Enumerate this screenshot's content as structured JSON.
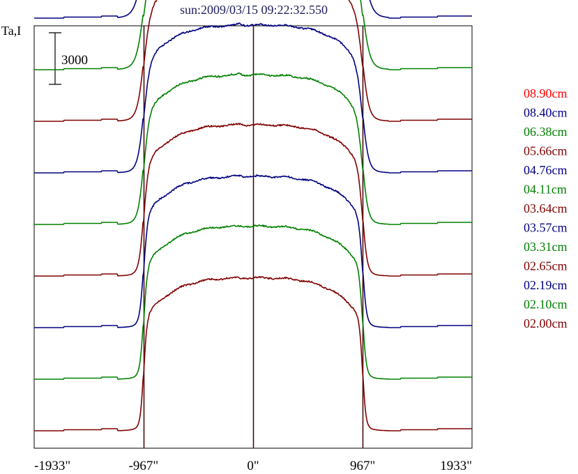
{
  "chart_data": {
    "type": "line",
    "title": "sun:2009/03/15 09:22:32.550",
    "ylabel": "Ta,I",
    "scale_bar_label": "3000",
    "scale_bar_value": 3000,
    "x_ticks": [
      {
        "value": -1933,
        "label": "-1933\""
      },
      {
        "value": -967,
        "label": "-967\""
      },
      {
        "value": 0,
        "label": "0\""
      },
      {
        "value": 967,
        "label": "967\""
      },
      {
        "value": 1933,
        "label": "1933\""
      }
    ],
    "xlim": [
      -1933,
      1933
    ],
    "reference_lines_x": [
      -967,
      0,
      967
    ],
    "legend_position": "right",
    "grid": false,
    "profile": {
      "x": [
        -1933,
        -1500,
        -1200,
        -1100,
        -1050,
        -1000,
        -980,
        -967,
        -950,
        -900,
        -800,
        -600,
        -400,
        -200,
        -100,
        0,
        100,
        200,
        400,
        600,
        800,
        900,
        950,
        967,
        980,
        1000,
        1050,
        1100,
        1200,
        1500,
        1933
      ],
      "baseline": 0,
      "disk_level": 8500
    },
    "series": [
      {
        "name": "08.90cm",
        "color": "#ff0000",
        "offset": 36000,
        "disk": 8000,
        "limb_width": 70
      },
      {
        "name": "08.40cm",
        "color": "#000080",
        "offset": 33000,
        "disk": 8200,
        "limb_width": 55
      },
      {
        "name": "06.38cm",
        "color": "#008000",
        "offset": 30000,
        "disk": 8200,
        "limb_width": 48
      },
      {
        "name": "05.66cm",
        "color": "#800000",
        "offset": 27000,
        "disk": 8400,
        "limb_width": 42
      },
      {
        "name": "04.76cm",
        "color": "#000080",
        "offset": 24000,
        "disk": 8400,
        "limb_width": 36
      },
      {
        "name": "04.11cm",
        "color": "#008000",
        "offset": 21000,
        "disk": 8500,
        "limb_width": 32
      },
      {
        "name": "03.64cm",
        "color": "#800000",
        "offset": 18000,
        "disk": 8600,
        "limb_width": 28
      },
      {
        "name": "03.57cm",
        "color": "#000080",
        "offset": 15000,
        "disk": 8600,
        "limb_width": 26
      },
      {
        "name": "03.31cm",
        "color": "#008000",
        "offset": 12000,
        "disk": 8700,
        "limb_width": 24
      },
      {
        "name": "02.65cm",
        "color": "#800000",
        "offset": 9000,
        "disk": 8800,
        "limb_width": 20
      },
      {
        "name": "02.19cm",
        "color": "#000080",
        "offset": 6000,
        "disk": 8800,
        "limb_width": 17
      },
      {
        "name": "02.10cm",
        "color": "#008000",
        "offset": 3000,
        "disk": 8900,
        "limb_width": 16
      },
      {
        "name": "02.00cm",
        "color": "#800000",
        "offset": 0,
        "disk": 8900,
        "limb_width": 14
      }
    ]
  }
}
